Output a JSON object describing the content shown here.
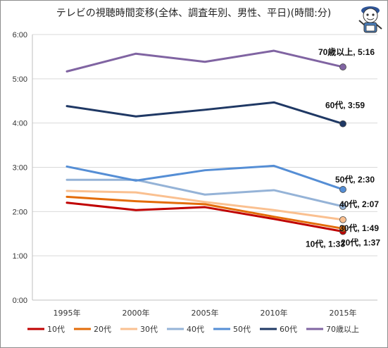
{
  "chart_data": {
    "type": "line",
    "title": "テレビの視聴時間変移(全体、調査年別、男性、平日)(時間:分)",
    "xlabel": "",
    "ylabel": "",
    "categories": [
      "1995年",
      "2000年",
      "2005年",
      "2010年",
      "2015年"
    ],
    "y_unit": "minutes",
    "ylim": [
      0,
      360
    ],
    "y_ticks": [
      {
        "value": 0,
        "label": "0:00"
      },
      {
        "value": 60,
        "label": "1:00"
      },
      {
        "value": 120,
        "label": "2:00"
      },
      {
        "value": 180,
        "label": "3:00"
      },
      {
        "value": 240,
        "label": "4:00"
      },
      {
        "value": 300,
        "label": "5:00"
      },
      {
        "value": 360,
        "label": "6:00"
      }
    ],
    "grid": true,
    "legend_position": "bottom",
    "series": [
      {
        "name": "10代",
        "color": "#c00000",
        "values": [
          132,
          122,
          126,
          110,
          93
        ],
        "end_label": "10代, 1:33"
      },
      {
        "name": "20代",
        "color": "#e36c09",
        "values": [
          140,
          134,
          130,
          113,
          97
        ],
        "end_label": "20代, 1:37"
      },
      {
        "name": "30代",
        "color": "#fac090",
        "values": [
          148,
          146,
          133,
          122,
          109
        ],
        "end_label": "30代, 1:49"
      },
      {
        "name": "40代",
        "color": "#95b3d7",
        "values": [
          163,
          163,
          143,
          149,
          127
        ],
        "end_label": "40代, 2:07"
      },
      {
        "name": "50代",
        "color": "#558ed5",
        "values": [
          181,
          162,
          176,
          182,
          150
        ],
        "end_label": "50代, 2:30"
      },
      {
        "name": "60代",
        "color": "#1f3864",
        "values": [
          263,
          249,
          258,
          268,
          239
        ],
        "end_label": "60代, 3:59"
      },
      {
        "name": "70歳以上",
        "color": "#8064a2",
        "values": [
          310,
          334,
          323,
          338,
          316
        ],
        "end_label": "70歳以上, 5:16"
      }
    ]
  },
  "mascot": {
    "icon": "mascot-character-icon"
  }
}
